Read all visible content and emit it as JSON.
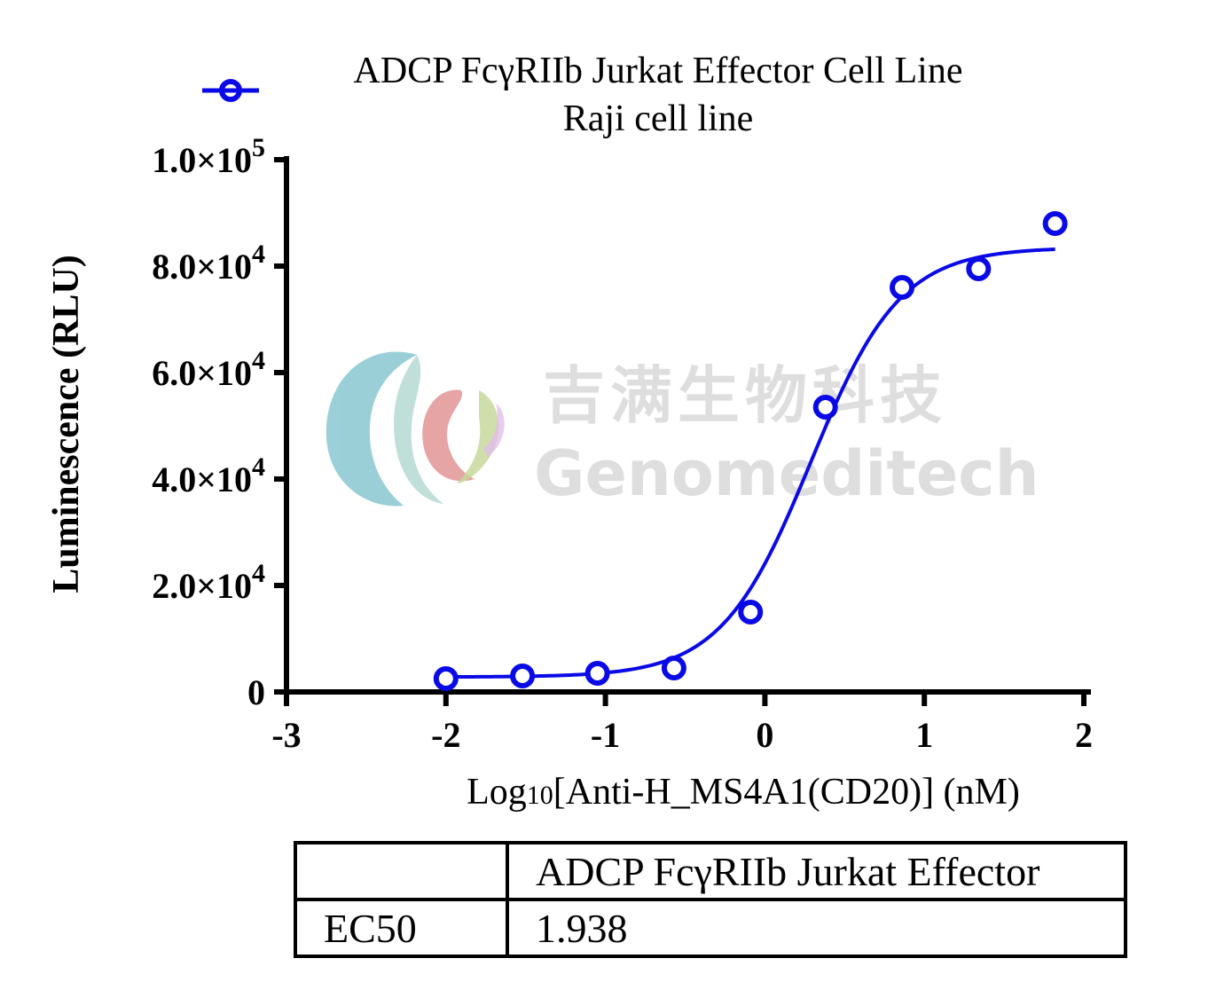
{
  "chart_data": {
    "type": "scatter",
    "legend": {
      "placement": "top",
      "entries": [
        "ADCP FcγRIIb Jurkat Effector Cell Line"
      ],
      "subtitle": "Raji cell line"
    },
    "xlabel": {
      "prefix": "Log",
      "subscript": "10",
      "rest": "[Anti-H_MS4A1(CD20)] (nM)"
    },
    "ylabel": "Luminescence (RLU)",
    "xlim": [
      -3,
      2
    ],
    "ylim": [
      0,
      100000
    ],
    "x_ticks": [
      -3,
      -2,
      -1,
      0,
      1,
      2
    ],
    "x_tick_labels": [
      "-3",
      "-2",
      "-1",
      "0",
      "1",
      "2"
    ],
    "y_ticks": [
      0,
      20000,
      40000,
      60000,
      80000,
      100000
    ],
    "y_tick_labels": [
      {
        "mant": "0",
        "exp": ""
      },
      {
        "mant": "2.0×10",
        "exp": "4"
      },
      {
        "mant": "4.0×10",
        "exp": "4"
      },
      {
        "mant": "6.0×10",
        "exp": "4"
      },
      {
        "mant": "8.0×10",
        "exp": "4"
      },
      {
        "mant": "1.0×10",
        "exp": "5"
      }
    ],
    "series": [
      {
        "name": "ADCP FcγRIIb Jurkat Effector Cell Line",
        "color": "#0a0ae6",
        "marker": "open-circle",
        "x": [
          -2.0,
          -1.52,
          -1.05,
          -0.57,
          -0.09,
          0.38,
          0.86,
          1.34,
          1.82
        ],
        "y": [
          2500,
          3000,
          3500,
          4500,
          15000,
          53500,
          76000,
          79500,
          88000
        ]
      }
    ],
    "fit": {
      "type": "sigmoid",
      "bottom": 2800,
      "top": 83500,
      "log_ec50": 0.2874,
      "hill": 1.55,
      "x_range": [
        -2.0,
        1.82
      ]
    },
    "grid": false
  },
  "results_table": {
    "header": [
      "",
      "ADCP FcγRIIb Jurkat Effector"
    ],
    "rows": [
      [
        "EC50",
        "1.938"
      ]
    ]
  },
  "watermark": {
    "cn": "吉满生物科技",
    "en": "Genomeditech"
  }
}
